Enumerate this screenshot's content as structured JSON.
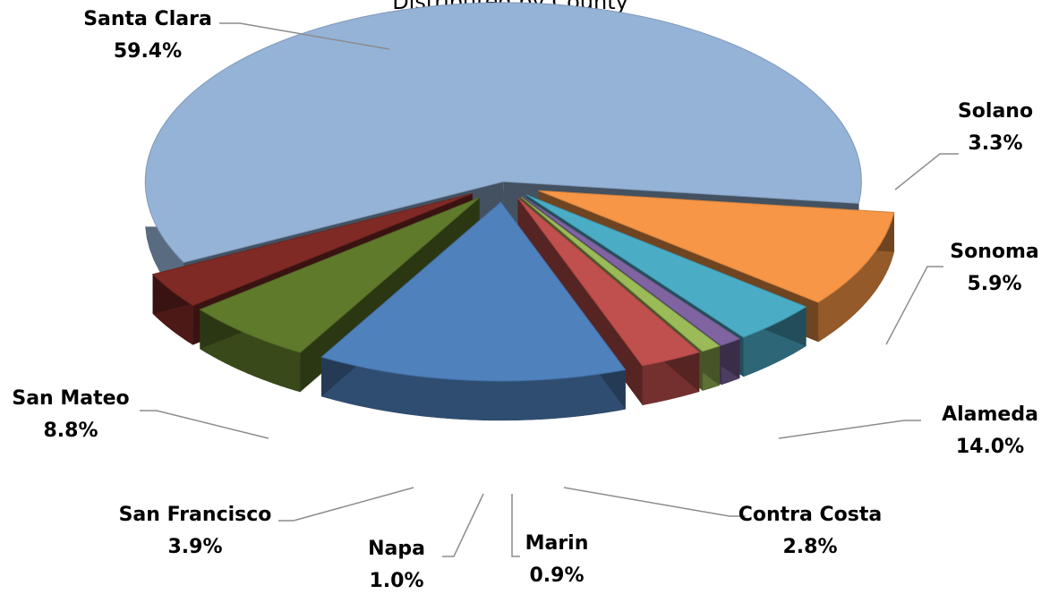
{
  "chart_data": {
    "type": "pie",
    "title": "Distributed by County",
    "style": "3d-exploded",
    "slices": [
      {
        "name": "Santa Clara",
        "value": 59.4,
        "label": "59.4%",
        "color": "#95b3d7"
      },
      {
        "name": "Solano",
        "value": 3.3,
        "label": "3.3%",
        "color": "#7f2a25"
      },
      {
        "name": "Sonoma",
        "value": 5.9,
        "label": "5.9%",
        "color": "#5f7a2b"
      },
      {
        "name": "Alameda",
        "value": 14.0,
        "label": "14.0%",
        "color": "#4f81bd"
      },
      {
        "name": "Contra Costa",
        "value": 2.8,
        "label": "2.8%",
        "color": "#c0504d"
      },
      {
        "name": "Marin",
        "value": 0.9,
        "label": "0.9%",
        "color": "#9bbb59"
      },
      {
        "name": "Napa",
        "value": 1.0,
        "label": "1.0%",
        "color": "#8064a2"
      },
      {
        "name": "San Francisco",
        "value": 3.9,
        "label": "3.9%",
        "color": "#4bacc6"
      },
      {
        "name": "San Mateo",
        "value": 8.8,
        "label": "8.8%",
        "color": "#f79646"
      }
    ]
  }
}
